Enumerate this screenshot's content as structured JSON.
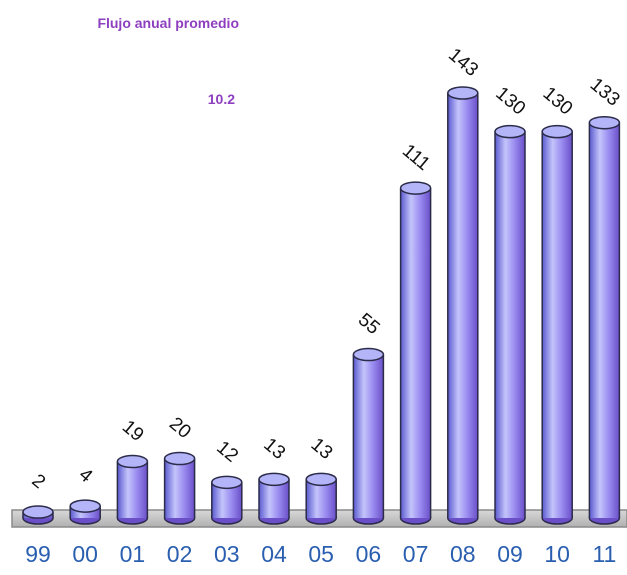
{
  "chart_data": {
    "type": "bar",
    "categories": [
      "99",
      "00",
      "01",
      "02",
      "03",
      "04",
      "05",
      "06",
      "07",
      "08",
      "09",
      "10",
      "11"
    ],
    "values": [
      2,
      4,
      19,
      20,
      12,
      13,
      13,
      55,
      111,
      143,
      130,
      130,
      133
    ],
    "data_labels": [
      "2",
      "4",
      "19",
      "20",
      "12",
      "13",
      "13",
      "55",
      "111",
      "143",
      "130",
      "130",
      "133"
    ],
    "annotation": {
      "title": "Flujo anual promedio",
      "value": "10.2"
    },
    "ylim": [
      0,
      143
    ],
    "grid": false,
    "legend": "none",
    "colors": {
      "bar": "#8a8af0",
      "bar_top": "#b4b4f8",
      "bar_outline": "#2b2b4a",
      "floor": "#c0c0c0",
      "tick_label": "#2a5fb0",
      "annotation": "#8e3fc0"
    }
  }
}
